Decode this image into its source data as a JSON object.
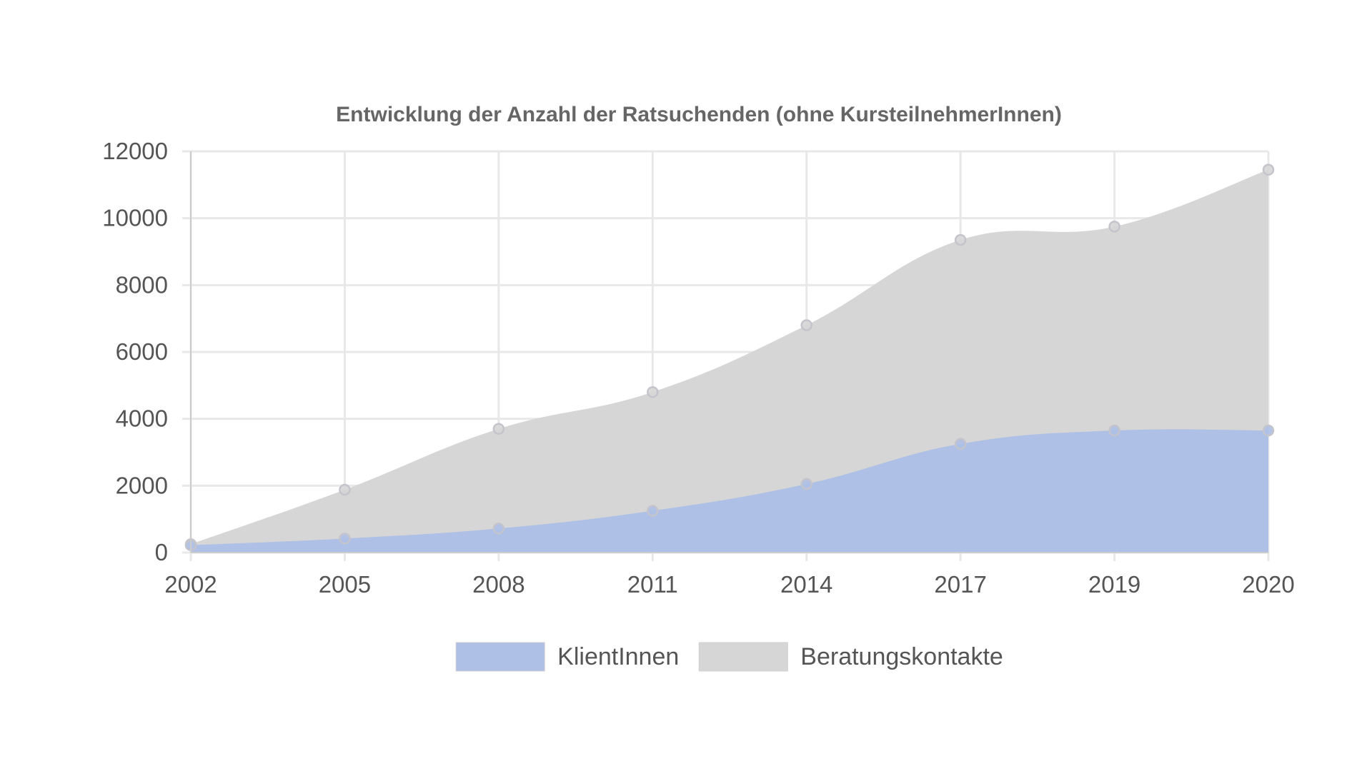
{
  "chart_data": {
    "type": "area",
    "title": "Entwicklung der Anzahl der Ratsuchenden (ohne KursteilnehmerInnen)",
    "xlabel": "",
    "ylabel": "",
    "categories": [
      "2002",
      "2005",
      "2008",
      "2011",
      "2014",
      "2017",
      "2019",
      "2020"
    ],
    "y_ticks": [
      "0",
      "2000",
      "4000",
      "6000",
      "8000",
      "10000",
      "12000"
    ],
    "ylim": [
      0,
      12000
    ],
    "stacked": false,
    "grid": true,
    "legend_position": "bottom",
    "series": [
      {
        "name": "KlientInnen",
        "color": "#aec0e6",
        "values": [
          220,
          420,
          720,
          1250,
          2050,
          3250,
          3650,
          3650
        ]
      },
      {
        "name": "Beratungskontakte",
        "color": "#d6d6d6",
        "values": [
          250,
          1880,
          3700,
          4800,
          6800,
          9350,
          9750,
          11450
        ]
      }
    ]
  }
}
